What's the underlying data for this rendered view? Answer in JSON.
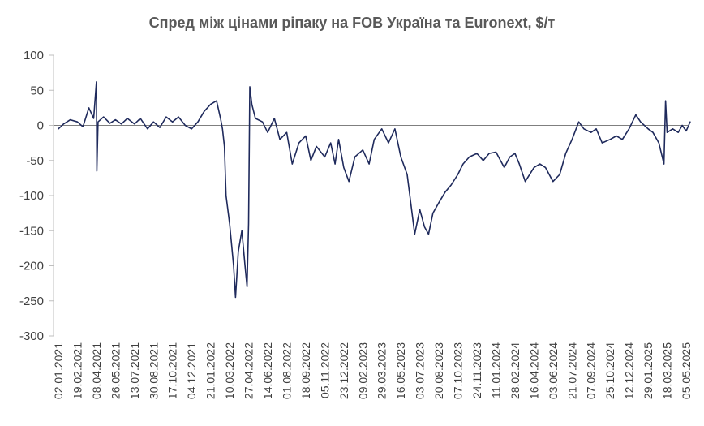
{
  "chart_data": {
    "type": "line",
    "title": "Спред між цінами ріпаку на FOB Україна та Euronext, $/т",
    "xlabel": "",
    "ylabel": "",
    "ylim": [
      -300,
      100
    ],
    "yticks": [
      "100",
      "50",
      "0",
      "-50",
      "-100",
      "-150",
      "-200",
      "-250",
      "-300"
    ],
    "xticks": [
      "02.01.2021",
      "19.02.2021",
      "08.04.2021",
      "26.05.2021",
      "13.07.2021",
      "30.08.2021",
      "17.10.2021",
      "04.12.2021",
      "21.01.2022",
      "10.03.2022",
      "27.04.2022",
      "14.06.2022",
      "01.08.2022",
      "18.09.2022",
      "05.11.2022",
      "23.12.2022",
      "09.02.2023",
      "29.03.2023",
      "16.05.2023",
      "03.07.2023",
      "20.08.2023",
      "07.10.2023",
      "24.11.2023",
      "11.01.2024",
      "28.02.2024",
      "16.04.2024",
      "03.06.2024",
      "21.07.2024",
      "07.09.2024",
      "25.10.2024",
      "12.12.2024",
      "29.01.2025",
      "18.03.2025",
      "05.05.2025"
    ],
    "grid": false,
    "legend": "none",
    "line_color": "#1f2a5c",
    "series": [
      {
        "name": "",
        "points": [
          [
            "02.01.2021",
            -5
          ],
          [
            "15.01.2021",
            2
          ],
          [
            "01.02.2021",
            8
          ],
          [
            "19.02.2021",
            5
          ],
          [
            "05.03.2021",
            -2
          ],
          [
            "20.03.2021",
            25
          ],
          [
            "01.04.2021",
            10
          ],
          [
            "08.04.2021",
            62
          ],
          [
            "09.04.2021",
            -65
          ],
          [
            "12.04.2021",
            5
          ],
          [
            "26.04.2021",
            12
          ],
          [
            "12.05.2021",
            3
          ],
          [
            "26.05.2021",
            8
          ],
          [
            "10.06.2021",
            2
          ],
          [
            "25.06.2021",
            10
          ],
          [
            "13.07.2021",
            2
          ],
          [
            "28.07.2021",
            10
          ],
          [
            "15.08.2021",
            -5
          ],
          [
            "30.08.2021",
            5
          ],
          [
            "15.09.2021",
            -3
          ],
          [
            "01.10.2021",
            12
          ],
          [
            "17.10.2021",
            5
          ],
          [
            "01.11.2021",
            12
          ],
          [
            "18.11.2021",
            0
          ],
          [
            "04.12.2021",
            -5
          ],
          [
            "20.12.2021",
            5
          ],
          [
            "05.01.2022",
            20
          ],
          [
            "21.01.2022",
            30
          ],
          [
            "05.02.2022",
            35
          ],
          [
            "15.02.2022",
            10
          ],
          [
            "20.02.2022",
            -5
          ],
          [
            "25.02.2022",
            -30
          ],
          [
            "01.03.2022",
            -100
          ],
          [
            "10.03.2022",
            -140
          ],
          [
            "20.03.2022",
            -200
          ],
          [
            "25.03.2022",
            -245
          ],
          [
            "01.04.2022",
            -180
          ],
          [
            "10.04.2022",
            -150
          ],
          [
            "18.04.2022",
            -200
          ],
          [
            "23.04.2022",
            -230
          ],
          [
            "27.04.2022",
            -140
          ],
          [
            "30.04.2022",
            55
          ],
          [
            "05.05.2022",
            30
          ],
          [
            "14.05.2022",
            10
          ],
          [
            "01.06.2022",
            5
          ],
          [
            "14.06.2022",
            -10
          ],
          [
            "01.07.2022",
            10
          ],
          [
            "15.07.2022",
            -20
          ],
          [
            "01.08.2022",
            -10
          ],
          [
            "15.08.2022",
            -55
          ],
          [
            "01.09.2022",
            -25
          ],
          [
            "18.09.2022",
            -15
          ],
          [
            "01.10.2022",
            -50
          ],
          [
            "15.10.2022",
            -30
          ],
          [
            "05.11.2022",
            -45
          ],
          [
            "20.11.2022",
            -25
          ],
          [
            "01.12.2022",
            -55
          ],
          [
            "10.12.2022",
            -20
          ],
          [
            "23.12.2022",
            -60
          ],
          [
            "05.01.2023",
            -80
          ],
          [
            "20.01.2023",
            -45
          ],
          [
            "09.02.2023",
            -35
          ],
          [
            "25.02.2023",
            -55
          ],
          [
            "10.03.2023",
            -20
          ],
          [
            "29.03.2023",
            -5
          ],
          [
            "15.04.2023",
            -25
          ],
          [
            "01.05.2023",
            -5
          ],
          [
            "16.05.2023",
            -45
          ],
          [
            "01.06.2023",
            -70
          ],
          [
            "10.06.2023",
            -110
          ],
          [
            "20.06.2023",
            -155
          ],
          [
            "03.07.2023",
            -120
          ],
          [
            "15.07.2023",
            -145
          ],
          [
            "25.07.2023",
            -155
          ],
          [
            "05.08.2023",
            -125
          ],
          [
            "20.08.2023",
            -110
          ],
          [
            "05.09.2023",
            -95
          ],
          [
            "20.09.2023",
            -85
          ],
          [
            "07.10.2023",
            -70
          ],
          [
            "20.10.2023",
            -55
          ],
          [
            "05.11.2023",
            -45
          ],
          [
            "24.11.2023",
            -40
          ],
          [
            "10.12.2023",
            -50
          ],
          [
            "25.12.2023",
            -40
          ],
          [
            "11.01.2024",
            -38
          ],
          [
            "01.02.2024",
            -60
          ],
          [
            "15.02.2024",
            -45
          ],
          [
            "28.02.2024",
            -40
          ],
          [
            "10.03.2024",
            -55
          ],
          [
            "25.03.2024",
            -80
          ],
          [
            "16.04.2024",
            -60
          ],
          [
            "01.05.2024",
            -55
          ],
          [
            "15.05.2024",
            -60
          ],
          [
            "03.06.2024",
            -80
          ],
          [
            "20.06.2024",
            -70
          ],
          [
            "05.07.2024",
            -40
          ],
          [
            "21.07.2024",
            -20
          ],
          [
            "07.08.2024",
            5
          ],
          [
            "20.08.2024",
            -5
          ],
          [
            "07.09.2024",
            -10
          ],
          [
            "20.09.2024",
            -5
          ],
          [
            "05.10.2024",
            -25
          ],
          [
            "25.10.2024",
            -20
          ],
          [
            "10.11.2024",
            -15
          ],
          [
            "25.11.2024",
            -20
          ],
          [
            "12.12.2024",
            -5
          ],
          [
            "29.12.2024",
            15
          ],
          [
            "10.01.2025",
            5
          ],
          [
            "29.01.2025",
            -5
          ],
          [
            "10.02.2025",
            -10
          ],
          [
            "25.02.2025",
            -25
          ],
          [
            "10.03.2025",
            -55
          ],
          [
            "14.03.2025",
            35
          ],
          [
            "18.03.2025",
            -10
          ],
          [
            "01.04.2025",
            -5
          ],
          [
            "15.04.2025",
            -10
          ],
          [
            "25.04.2025",
            0
          ],
          [
            "05.05.2025",
            -8
          ],
          [
            "15.05.2025",
            5
          ]
        ]
      }
    ]
  }
}
